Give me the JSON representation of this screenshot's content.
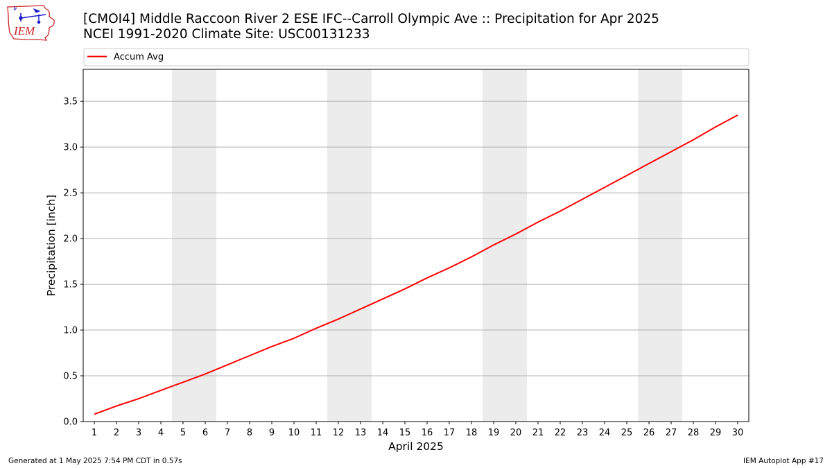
{
  "header": {
    "logo_text": "IEM",
    "title_line1": "[CMOI4] Middle Raccoon River 2 ESE IFC--Carroll Olympic Ave :: Precipitation for Apr 2025",
    "title_line2": "NCEI 1991-2020 Climate Site: USC00131233"
  },
  "footer": {
    "generated": "Generated at 1 May 2025 7:54 PM CDT in 0.57s",
    "app": "IEM Autoplot App #17"
  },
  "colors": {
    "line": "#ff0000",
    "weekend_band": "#ececec",
    "grid": "#b0b0b0",
    "logo": "#cc2222",
    "logo_icon": "#1a1acc"
  },
  "chart_data": {
    "type": "line",
    "title": "[CMOI4] Middle Raccoon River 2 ESE IFC--Carroll Olympic Ave :: Precipitation for Apr 2025",
    "subtitle": "NCEI 1991-2020 Climate Site: USC00131233",
    "xlabel": "April 2025",
    "ylabel": "Precipitation [inch]",
    "x": [
      1,
      2,
      3,
      4,
      5,
      6,
      7,
      8,
      9,
      10,
      11,
      12,
      13,
      14,
      15,
      16,
      17,
      18,
      19,
      20,
      21,
      22,
      23,
      24,
      25,
      26,
      27,
      28,
      29,
      30
    ],
    "x_tick_labels": [
      "1",
      "2",
      "3",
      "4",
      "5",
      "6",
      "7",
      "8",
      "9",
      "10",
      "11",
      "12",
      "13",
      "14",
      "15",
      "16",
      "17",
      "18",
      "19",
      "20",
      "21",
      "22",
      "23",
      "24",
      "25",
      "26",
      "27",
      "28",
      "29",
      "30"
    ],
    "y_ticks": [
      0.0,
      0.5,
      1.0,
      1.5,
      2.0,
      2.5,
      3.0,
      3.5
    ],
    "y_tick_labels": [
      "0.0",
      "0.5",
      "1.0",
      "1.5",
      "2.0",
      "2.5",
      "3.0",
      "3.5"
    ],
    "xlim": [
      0.5,
      30.5
    ],
    "ylim": [
      0,
      3.85
    ],
    "grid": "horizontal",
    "legend_placement": "top, above plot",
    "weekend_bands": [
      [
        4.5,
        6.5
      ],
      [
        11.5,
        13.5
      ],
      [
        18.5,
        20.5
      ],
      [
        25.5,
        27.5
      ]
    ],
    "series": [
      {
        "name": "Accum Avg",
        "color": "#ff0000",
        "values": [
          0.08,
          0.17,
          0.25,
          0.34,
          0.43,
          0.52,
          0.62,
          0.72,
          0.82,
          0.91,
          1.02,
          1.12,
          1.23,
          1.34,
          1.45,
          1.57,
          1.68,
          1.8,
          1.93,
          2.05,
          2.18,
          2.3,
          2.43,
          2.56,
          2.69,
          2.82,
          2.95,
          3.08,
          3.22,
          3.35
        ]
      }
    ]
  }
}
